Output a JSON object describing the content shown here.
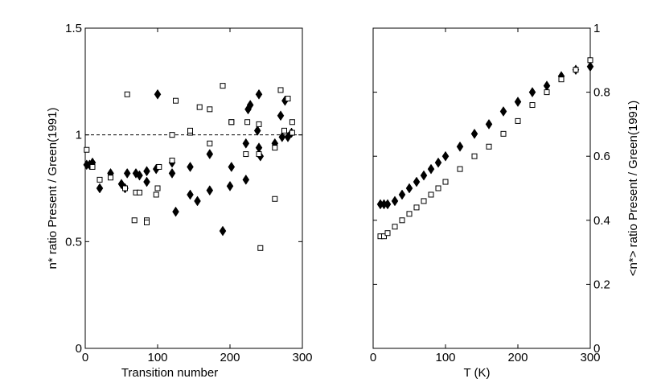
{
  "chart_data": [
    {
      "type": "scatter",
      "xlabel": "Transition number",
      "ylabel": "n* ratio Present / Green(1991)",
      "xlim": [
        0,
        300
      ],
      "ylim": [
        0,
        1.5
      ],
      "xticks": [
        "0",
        "100",
        "200",
        "300"
      ],
      "yticks": [
        "0",
        "0.5",
        "1",
        "1.5"
      ],
      "reference_line": {
        "y": 1,
        "style": "dashed"
      },
      "grid": false,
      "series": [
        {
          "marker": "filled-diamond",
          "color": "#000000",
          "points": [
            [
              2,
              0.86
            ],
            [
              6,
              0.86
            ],
            [
              10,
              0.87
            ],
            [
              20,
              0.75
            ],
            [
              35,
              0.82
            ],
            [
              50,
              0.77
            ],
            [
              55,
              0.75
            ],
            [
              58,
              0.82
            ],
            [
              70,
              0.82
            ],
            [
              75,
              0.81
            ],
            [
              85,
              0.78
            ],
            [
              85,
              0.83
            ],
            [
              98,
              0.84
            ],
            [
              100,
              1.19
            ],
            [
              120,
              0.87
            ],
            [
              120,
              0.82
            ],
            [
              125,
              0.64
            ],
            [
              145,
              0.72
            ],
            [
              145,
              0.85
            ],
            [
              155,
              0.69
            ],
            [
              172,
              0.91
            ],
            [
              172,
              0.74
            ],
            [
              190,
              0.55
            ],
            [
              200,
              0.76
            ],
            [
              202,
              0.85
            ],
            [
              222,
              0.96
            ],
            [
              222,
              0.79
            ],
            [
              225,
              1.12
            ],
            [
              228,
              1.14
            ],
            [
              238,
              1.02
            ],
            [
              240,
              1.19
            ],
            [
              240,
              0.94
            ],
            [
              242,
              0.9
            ],
            [
              262,
              0.96
            ],
            [
              270,
              1.09
            ],
            [
              272,
              0.99
            ],
            [
              276,
              1.16
            ],
            [
              280,
              0.99
            ],
            [
              285,
              1.01
            ]
          ]
        },
        {
          "marker": "open-square",
          "color": "#000000",
          "points": [
            [
              2,
              0.93
            ],
            [
              10,
              0.85
            ],
            [
              20,
              0.79
            ],
            [
              35,
              0.8
            ],
            [
              55,
              0.75
            ],
            [
              58,
              1.19
            ],
            [
              68,
              0.6
            ],
            [
              70,
              0.73
            ],
            [
              75,
              0.73
            ],
            [
              85,
              0.6
            ],
            [
              85,
              0.59
            ],
            [
              98,
              0.72
            ],
            [
              100,
              0.75
            ],
            [
              102,
              0.85
            ],
            [
              120,
              0.88
            ],
            [
              120,
              1.0
            ],
            [
              125,
              1.16
            ],
            [
              145,
              1.01
            ],
            [
              145,
              1.02
            ],
            [
              158,
              1.13
            ],
            [
              172,
              0.96
            ],
            [
              172,
              1.12
            ],
            [
              190,
              1.23
            ],
            [
              202,
              1.06
            ],
            [
              202,
              1.06
            ],
            [
              222,
              0.91
            ],
            [
              224,
              1.06
            ],
            [
              240,
              1.05
            ],
            [
              242,
              0.47
            ],
            [
              240,
              0.91
            ],
            [
              262,
              0.94
            ],
            [
              262,
              0.7
            ],
            [
              270,
              1.21
            ],
            [
              275,
              1.02
            ],
            [
              280,
              1.17
            ],
            [
              286,
              1.06
            ],
            [
              286,
              1.01
            ]
          ]
        }
      ]
    },
    {
      "type": "scatter",
      "xlabel": "T (K)",
      "ylabel": "<n*> ratio Present / Green(1991)",
      "xlim": [
        0,
        300
      ],
      "ylim": [
        0,
        1
      ],
      "xticks": [
        "0",
        "100",
        "200",
        "300"
      ],
      "yticks": [
        "0",
        "0.2",
        "0.4",
        "0.6",
        "0.8",
        "1"
      ],
      "y_axis_side": "right",
      "grid": false,
      "series": [
        {
          "marker": "filled-diamond",
          "color": "#000000",
          "points": [
            [
              10,
              0.45
            ],
            [
              15,
              0.45
            ],
            [
              20,
              0.45
            ],
            [
              30,
              0.46
            ],
            [
              40,
              0.48
            ],
            [
              50,
              0.5
            ],
            [
              60,
              0.52
            ],
            [
              70,
              0.54
            ],
            [
              80,
              0.56
            ],
            [
              90,
              0.58
            ],
            [
              100,
              0.6
            ],
            [
              120,
              0.63
            ],
            [
              140,
              0.67
            ],
            [
              160,
              0.7
            ],
            [
              180,
              0.74
            ],
            [
              200,
              0.77
            ],
            [
              220,
              0.8
            ],
            [
              240,
              0.82
            ],
            [
              260,
              0.85
            ],
            [
              280,
              0.87
            ],
            [
              300,
              0.88
            ]
          ]
        },
        {
          "marker": "open-square",
          "color": "#000000",
          "points": [
            [
              10,
              0.35
            ],
            [
              15,
              0.35
            ],
            [
              20,
              0.36
            ],
            [
              30,
              0.38
            ],
            [
              40,
              0.4
            ],
            [
              50,
              0.42
            ],
            [
              60,
              0.44
            ],
            [
              70,
              0.46
            ],
            [
              80,
              0.48
            ],
            [
              90,
              0.5
            ],
            [
              100,
              0.52
            ],
            [
              120,
              0.56
            ],
            [
              140,
              0.6
            ],
            [
              160,
              0.63
            ],
            [
              180,
              0.67
            ],
            [
              200,
              0.71
            ],
            [
              220,
              0.76
            ],
            [
              240,
              0.8
            ],
            [
              260,
              0.84
            ],
            [
              280,
              0.87
            ],
            [
              300,
              0.9
            ]
          ]
        }
      ]
    }
  ]
}
